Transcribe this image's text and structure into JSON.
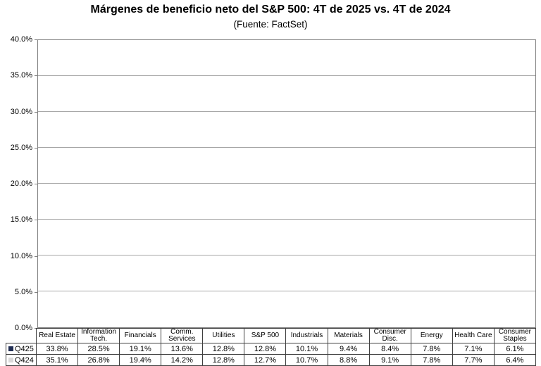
{
  "title": "Márgenes de beneficio neto del S&P 500: 4T de 2025 vs. 4T de 2024",
  "subtitle": "(Fuente: FactSet)",
  "colors": {
    "series_q425": "#212e54",
    "series_q424": "#d9d9d9",
    "gridline": "#a6a6a6",
    "plot_border": "#808080",
    "table_border": "#3f3f3f"
  },
  "chart_data": {
    "type": "bar",
    "title": "Márgenes de beneficio neto del S&P 500: 4T de 2025 vs. 4T de 2024",
    "subtitle": "(Fuente: FactSet)",
    "categories": [
      "Real Estate",
      "Information Tech.",
      "Financials",
      "Comm. Services",
      "Utilities",
      "S&P 500",
      "Industrials",
      "Materials",
      "Consumer Disc.",
      "Energy",
      "Health Care",
      "Consumer Staples"
    ],
    "series": [
      {
        "name": "Q425",
        "color": "#212e54",
        "values": [
          33.8,
          28.5,
          19.1,
          13.6,
          12.8,
          12.8,
          10.1,
          9.4,
          8.4,
          7.8,
          7.1,
          6.1
        ]
      },
      {
        "name": "Q424",
        "color": "#d9d9d9",
        "values": [
          35.1,
          26.8,
          19.4,
          14.2,
          12.8,
          12.7,
          10.7,
          8.8,
          9.1,
          7.8,
          7.7,
          6.4
        ]
      }
    ],
    "xlabel": "",
    "ylabel": "",
    "ylim": [
      0,
      40
    ],
    "ytick_step": 5,
    "ytick_labels": [
      "0.0%",
      "5.0%",
      "10.0%",
      "15.0%",
      "20.0%",
      "25.0%",
      "30.0%",
      "35.0%",
      "40.0%"
    ],
    "value_suffix": "%",
    "grid": true,
    "legend_position": "table-left-column"
  }
}
